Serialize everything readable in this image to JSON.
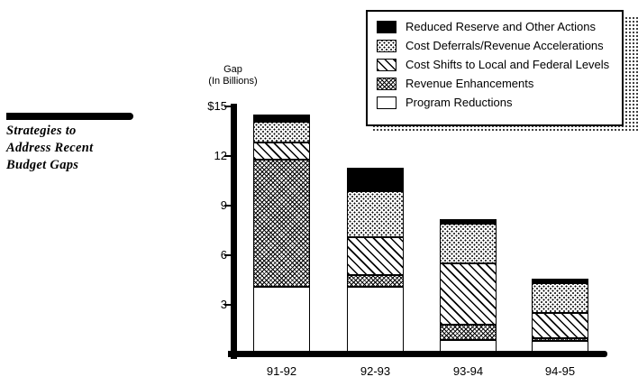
{
  "page": {
    "background": "#ffffff",
    "ink": "#000000"
  },
  "sidebar": {
    "title_lines": [
      "Strategies to",
      "Address Recent",
      "Budget Gaps"
    ]
  },
  "legend": {
    "items": [
      {
        "label": "Reduced Reserve and Other Actions",
        "pattern": "solid-black"
      },
      {
        "label": "Cost Deferrals/Revenue Accelerations",
        "pattern": "dots"
      },
      {
        "label": "Cost Shifts to Local and Federal Levels",
        "pattern": "diagonal"
      },
      {
        "label": "Revenue Enhancements",
        "pattern": "crosshatch"
      },
      {
        "label": "Program Reductions",
        "pattern": "white"
      }
    ]
  },
  "chart_data": {
    "type": "bar",
    "stacked": true,
    "title": "Strategies to Address Recent Budget Gaps",
    "y_axis_label_lines": [
      "Gap",
      "(In Billions)"
    ],
    "categories": [
      "91-92",
      "92-93",
      "93-94",
      "94-95"
    ],
    "series": [
      {
        "name": "Program Reductions",
        "pattern": "white",
        "values": [
          4.1,
          4.1,
          0.9,
          0.8
        ]
      },
      {
        "name": "Revenue Enhancements",
        "pattern": "crosshatch",
        "values": [
          7.7,
          0.7,
          0.9,
          0.2
        ]
      },
      {
        "name": "Cost Shifts to Local and Federal Levels",
        "pattern": "diagonal",
        "values": [
          1.0,
          2.3,
          3.7,
          1.5
        ]
      },
      {
        "name": "Cost Deferrals/Revenue Accelerations",
        "pattern": "dots",
        "values": [
          1.3,
          2.8,
          2.4,
          1.8
        ]
      },
      {
        "name": "Reduced Reserve and Other Actions",
        "pattern": "solid-black",
        "values": [
          0.4,
          1.4,
          0.3,
          0.3
        ]
      }
    ],
    "totals": [
      14.5,
      11.3,
      8.2,
      4.6
    ],
    "y_ticks": [
      {
        "value": 15,
        "label": "$15"
      },
      {
        "value": 12,
        "label": "12"
      },
      {
        "value": 9,
        "label": "9"
      },
      {
        "value": 6,
        "label": "6"
      },
      {
        "value": 3,
        "label": "3"
      }
    ],
    "ylim": [
      0,
      15.5
    ],
    "grid": false,
    "legend_position": "top-right"
  }
}
